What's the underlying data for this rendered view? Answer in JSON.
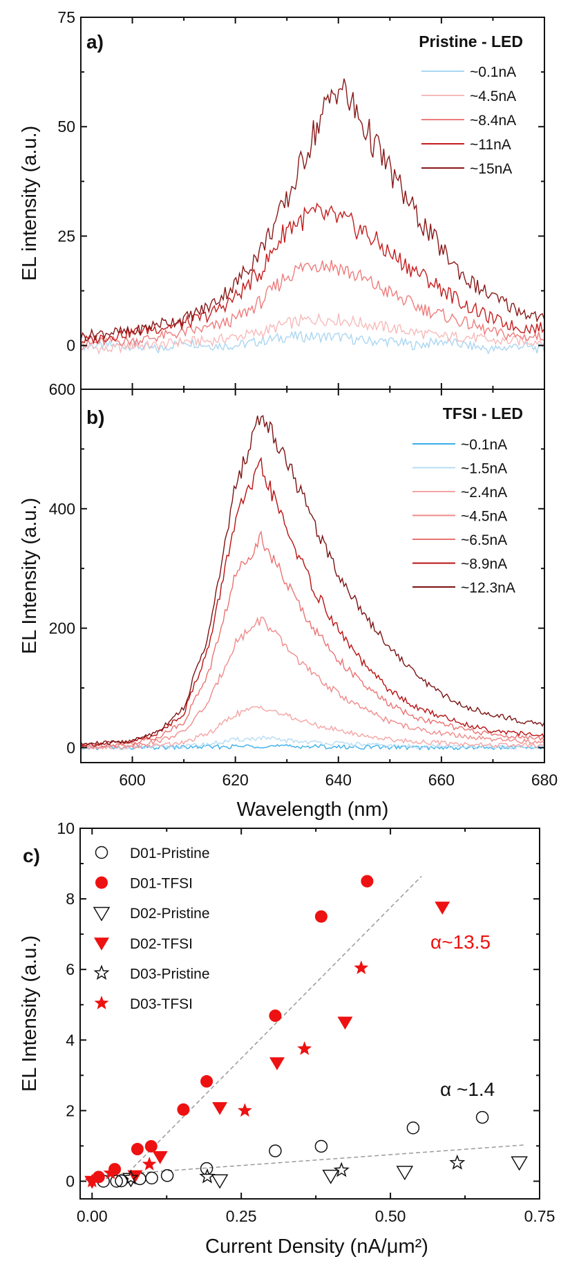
{
  "chart_data": [
    {
      "type": "line",
      "panel_label": "a)",
      "title": "Pristine - LED",
      "xlabel": "",
      "ylabel": "EL intensity (a.u.)",
      "xlim": [
        590,
        680
      ],
      "ylim": [
        -10,
        75
      ],
      "yticks": [
        "0",
        "25",
        "50",
        "75"
      ],
      "x": [
        590,
        595,
        600,
        605,
        610,
        615,
        620,
        625,
        630,
        635,
        640,
        645,
        650,
        655,
        660,
        665,
        670,
        675,
        680
      ],
      "series": [
        {
          "name": "~0.1nA",
          "color": "#aad6f2",
          "values": [
            0,
            0,
            0,
            -1,
            1,
            0,
            0,
            1,
            2,
            2,
            2,
            1,
            1,
            0,
            1,
            0,
            -1,
            0,
            -1
          ]
        },
        {
          "name": "~4.5nA",
          "color": "#f7baba",
          "values": [
            0,
            -1,
            0,
            0,
            1,
            1,
            2,
            3,
            5,
            6,
            6,
            5,
            4,
            3,
            2,
            2,
            1,
            1,
            1
          ]
        },
        {
          "name": "~8.4nA",
          "color": "#ee7b7b",
          "values": [
            0,
            1,
            1,
            2,
            3,
            4,
            6,
            10,
            16,
            19,
            18,
            15,
            12,
            9,
            7,
            5,
            3,
            2,
            2
          ]
        },
        {
          "name": "~11nA",
          "color": "#c41c1c",
          "values": [
            1,
            2,
            3,
            4,
            5,
            7,
            11,
            17,
            27,
            30,
            29,
            26,
            21,
            17,
            13,
            9,
            6,
            4,
            4
          ]
        },
        {
          "name": "~15nA",
          "color": "#881818",
          "values": [
            2,
            3,
            3,
            5,
            6,
            9,
            14,
            22,
            33,
            48,
            60,
            50,
            40,
            30,
            22,
            15,
            11,
            8,
            6
          ]
        }
      ]
    },
    {
      "type": "line",
      "panel_label": "b)",
      "title": "TFSI - LED",
      "xlabel": "Wavelength (nm)",
      "ylabel": "EL Intensity (a.u.)",
      "xlim": [
        590,
        680
      ],
      "ylim": [
        -25,
        600
      ],
      "xticks": [
        "600",
        "620",
        "640",
        "660",
        "680"
      ],
      "yticks": [
        "0",
        "200",
        "400",
        "600"
      ],
      "x": [
        590,
        595,
        600,
        605,
        610,
        615,
        620,
        625,
        630,
        635,
        640,
        645,
        650,
        655,
        660,
        665,
        670,
        675,
        680
      ],
      "series": [
        {
          "name": "~0.1nA",
          "color": "#3aaee8",
          "values": [
            0,
            0,
            0,
            0,
            1,
            1,
            2,
            3,
            2,
            2,
            1,
            1,
            1,
            0,
            0,
            0,
            0,
            0,
            0
          ]
        },
        {
          "name": "~1.5nA",
          "color": "#b6dcf3",
          "values": [
            0,
            0,
            0,
            1,
            2,
            6,
            13,
            16,
            12,
            9,
            7,
            5,
            3,
            2,
            2,
            1,
            1,
            1,
            1
          ]
        },
        {
          "name": "~2.4nA",
          "color": "#f5a4a4",
          "values": [
            1,
            1,
            1,
            4,
            8,
            25,
            56,
            69,
            53,
            39,
            29,
            20,
            14,
            10,
            8,
            6,
            4,
            4,
            3
          ]
        },
        {
          "name": "~4.5nA",
          "color": "#f08a8a",
          "values": [
            2,
            3,
            4,
            11,
            26,
            79,
            176,
            216,
            167,
            123,
            90,
            64,
            44,
            31,
            24,
            18,
            13,
            11,
            9
          ]
        },
        {
          "name": "~6.5nA",
          "color": "#ea7272",
          "values": [
            4,
            5,
            7,
            18,
            43,
            130,
            288,
            353,
            274,
            202,
            148,
            104,
            72,
            50,
            40,
            29,
            22,
            18,
            14
          ]
        },
        {
          "name": "~8.9nA",
          "color": "#b81010",
          "values": [
            5,
            7,
            10,
            24,
            58,
            173,
            384,
            470,
            365,
            269,
            197,
            139,
            96,
            67,
            53,
            38,
            29,
            24,
            19
          ]
        },
        {
          "name": "~12.3nA",
          "color": "#7a1212",
          "values": [
            6,
            8,
            11,
            28,
            67,
            196,
            437,
            560,
            482,
            381,
            291,
            224,
            168,
            123,
            90,
            67,
            56,
            45,
            39
          ]
        }
      ]
    },
    {
      "type": "scatter",
      "panel_label": "c)",
      "xlabel": "Current Density (nA/μm²)",
      "ylabel": "EL Intensity (a.u.)",
      "xlim": [
        -0.02,
        0.75
      ],
      "ylim": [
        -0.5,
        10
      ],
      "xticks": [
        "0.00",
        "0.25",
        "0.50",
        "0.75"
      ],
      "yticks": [
        "0",
        "2",
        "4",
        "6",
        "8",
        "10"
      ],
      "legend_position": "top-left",
      "series": [
        {
          "name": "D01-Pristine",
          "marker": "circle",
          "filled": false,
          "color": "#111111",
          "points": [
            [
              0.019,
              0.0
            ],
            [
              0.041,
              0.0
            ],
            [
              0.049,
              0.01
            ],
            [
              0.08,
              0.07
            ],
            [
              0.1,
              0.09
            ],
            [
              0.126,
              0.16
            ],
            [
              0.192,
              0.36
            ],
            [
              0.307,
              0.86
            ],
            [
              0.384,
              0.99
            ],
            [
              0.538,
              1.51
            ],
            [
              0.654,
              1.81
            ]
          ]
        },
        {
          "name": "D01-TFSI",
          "marker": "circle",
          "filled": true,
          "color": "#ee1111",
          "points": [
            [
              0.011,
              0.12
            ],
            [
              0.038,
              0.34
            ],
            [
              0.076,
              0.91
            ],
            [
              0.099,
              0.99
            ],
            [
              0.153,
              2.03
            ],
            [
              0.192,
              2.83
            ],
            [
              0.307,
              4.69
            ],
            [
              0.384,
              7.5
            ],
            [
              0.461,
              8.5
            ]
          ]
        },
        {
          "name": "D02-Pristine",
          "marker": "triangle-down",
          "filled": false,
          "color": "#111111",
          "points": [
            [
              0.065,
              0.07
            ],
            [
              0.214,
              0.03
            ],
            [
              0.4,
              0.16
            ],
            [
              0.524,
              0.27
            ],
            [
              0.716,
              0.54
            ]
          ]
        },
        {
          "name": "D02-TFSI",
          "marker": "triangle-down",
          "filled": true,
          "color": "#ee1111",
          "points": [
            [
              0.0,
              0.0
            ],
            [
              0.072,
              0.16
            ],
            [
              0.114,
              0.7
            ],
            [
              0.214,
              2.09
            ],
            [
              0.31,
              3.36
            ],
            [
              0.424,
              4.51
            ],
            [
              0.587,
              7.77
            ]
          ]
        },
        {
          "name": "D03-Pristine",
          "marker": "star",
          "filled": false,
          "color": "#111111",
          "points": [
            [
              0.065,
              0.1
            ],
            [
              0.193,
              0.13
            ],
            [
              0.418,
              0.31
            ],
            [
              0.612,
              0.52
            ]
          ]
        },
        {
          "name": "D03-TFSI",
          "marker": "star",
          "filled": true,
          "color": "#ee1111",
          "points": [
            [
              0.0,
              0.0
            ],
            [
              0.031,
              0.23
            ],
            [
              0.096,
              0.48
            ],
            [
              0.256,
              2.0
            ],
            [
              0.356,
              3.75
            ],
            [
              0.451,
              6.04
            ]
          ]
        }
      ],
      "fit_lines": [
        {
          "from": [
            0.069,
            0.39
          ],
          "to": [
            0.552,
            8.64
          ],
          "color": "#999999",
          "style": "dashed"
        },
        {
          "from": [
            0.0,
            0.14
          ],
          "to": [
            0.727,
            1.03
          ],
          "color": "#999999",
          "style": "dashed"
        }
      ],
      "annotations": [
        {
          "text": "α~13.5",
          "color": "#ee1111"
        },
        {
          "text": "α ~1.4",
          "color": "#111111"
        }
      ]
    }
  ]
}
